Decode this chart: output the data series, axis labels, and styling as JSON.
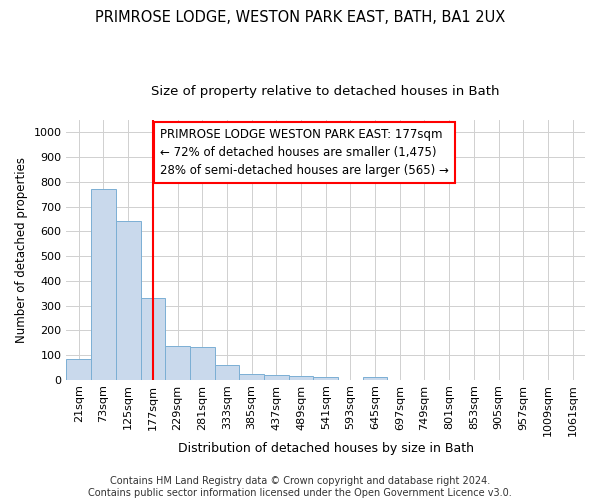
{
  "title1": "PRIMROSE LODGE, WESTON PARK EAST, BATH, BA1 2UX",
  "title2": "Size of property relative to detached houses in Bath",
  "xlabel": "Distribution of detached houses by size in Bath",
  "ylabel": "Number of detached properties",
  "footer1": "Contains HM Land Registry data © Crown copyright and database right 2024.",
  "footer2": "Contains public sector information licensed under the Open Government Licence v3.0.",
  "annotation_line1": "PRIMROSE LODGE WESTON PARK EAST: 177sqm",
  "annotation_line2": "← 72% of detached houses are smaller (1,475)",
  "annotation_line3": "28% of semi-detached houses are larger (565) →",
  "bar_labels": [
    "21sqm",
    "73sqm",
    "125sqm",
    "177sqm",
    "229sqm",
    "281sqm",
    "333sqm",
    "385sqm",
    "437sqm",
    "489sqm",
    "541sqm",
    "593sqm",
    "645sqm",
    "697sqm",
    "749sqm",
    "801sqm",
    "853sqm",
    "905sqm",
    "957sqm",
    "1009sqm",
    "1061sqm"
  ],
  "bar_values": [
    82,
    770,
    640,
    330,
    135,
    132,
    60,
    25,
    18,
    15,
    10,
    0,
    10,
    0,
    0,
    0,
    0,
    0,
    0,
    0,
    0
  ],
  "bar_color": "#c9d9ec",
  "bar_edge_color": "#7bafd4",
  "red_line_index": 3,
  "ylim": [
    0,
    1050
  ],
  "yticks": [
    0,
    100,
    200,
    300,
    400,
    500,
    600,
    700,
    800,
    900,
    1000
  ],
  "background_color": "#ffffff",
  "grid_color": "#d0d0d0",
  "title1_fontsize": 10.5,
  "title2_fontsize": 9.5,
  "xlabel_fontsize": 9,
  "ylabel_fontsize": 8.5,
  "tick_fontsize": 8,
  "annotation_fontsize": 8.5,
  "footer_fontsize": 7
}
